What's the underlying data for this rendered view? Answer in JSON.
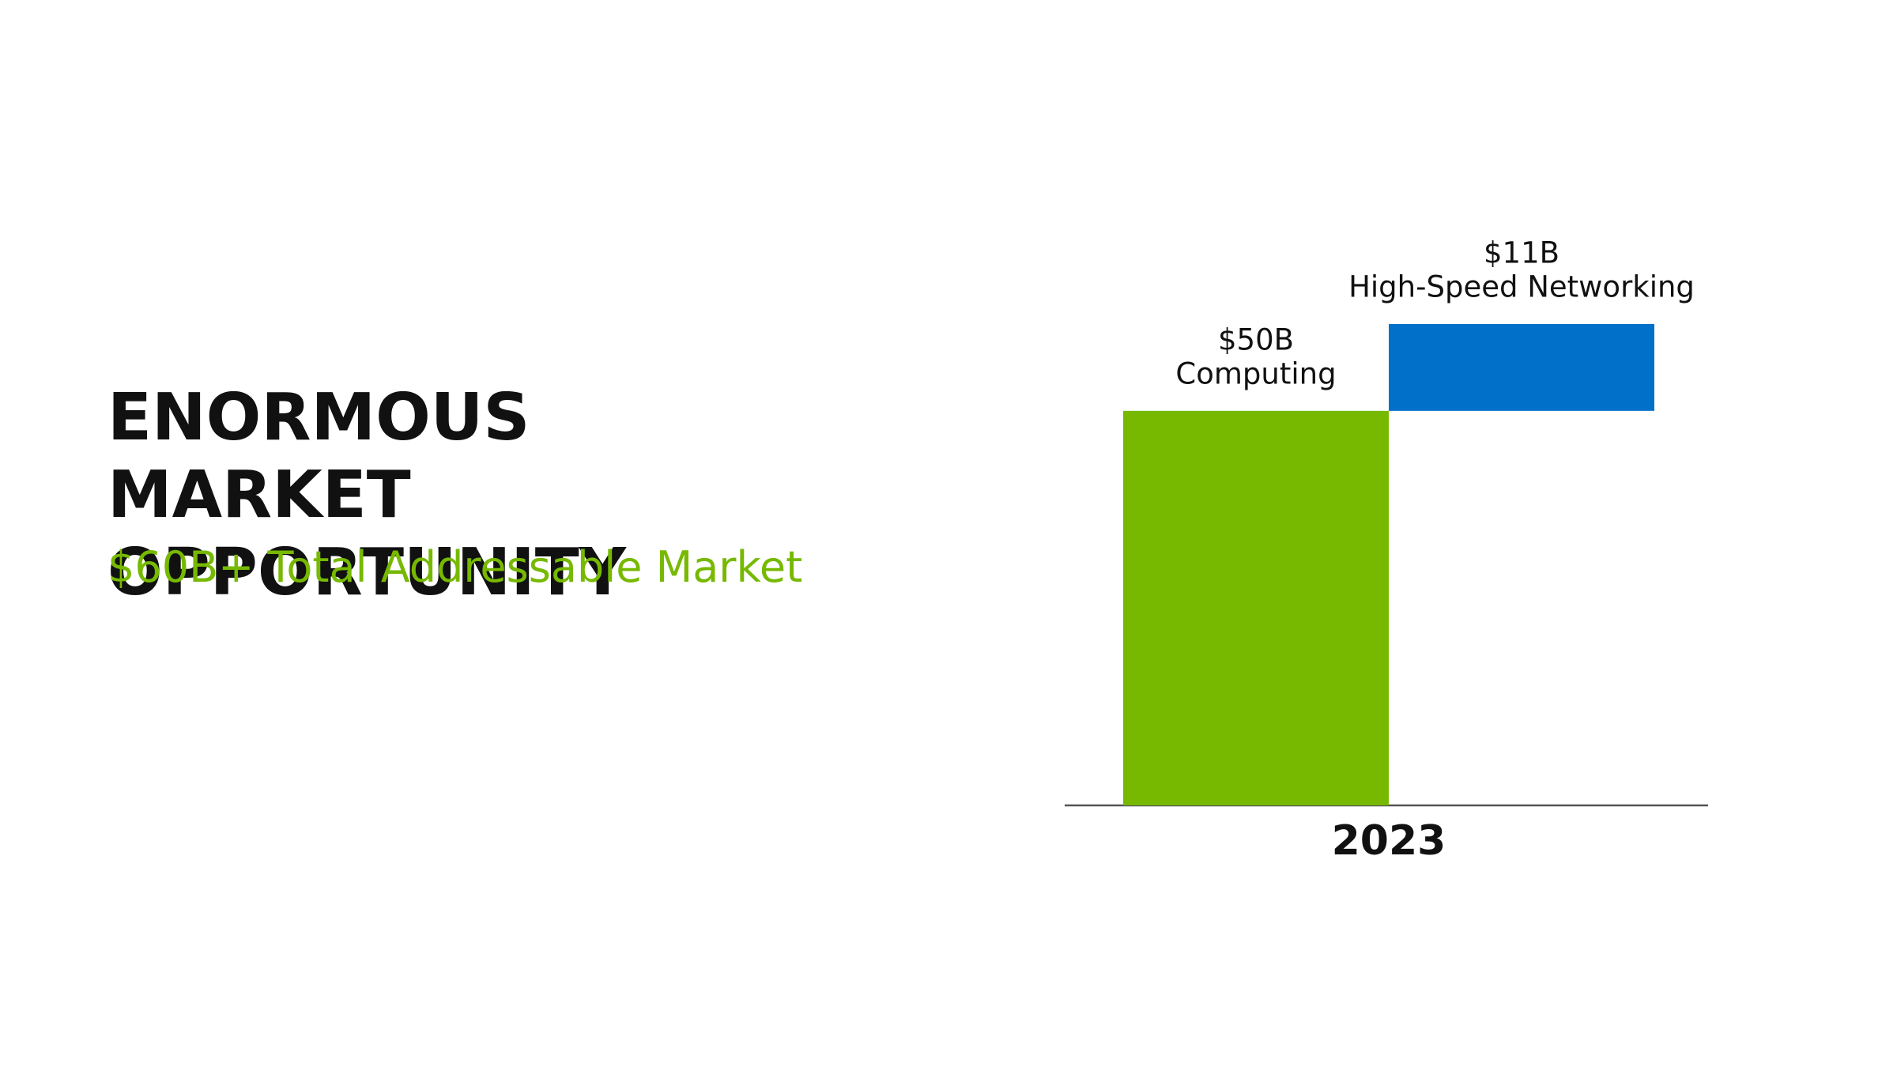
{
  "chart_data": {
    "type": "waterfall",
    "title": "ENORMOUS MARKET OPPORTUNITY",
    "subtitle": "$60B+ Total Addressable Market",
    "categories": [
      "2023"
    ],
    "series": [
      {
        "name": "Computing",
        "color": "#76b900",
        "values": [
          50
        ],
        "value_labels": [
          "$50B"
        ]
      },
      {
        "name": "High-Speed Networking",
        "color": "#0070c8",
        "values": [
          11
        ],
        "value_labels": [
          "$11B"
        ]
      }
    ]
  }
}
